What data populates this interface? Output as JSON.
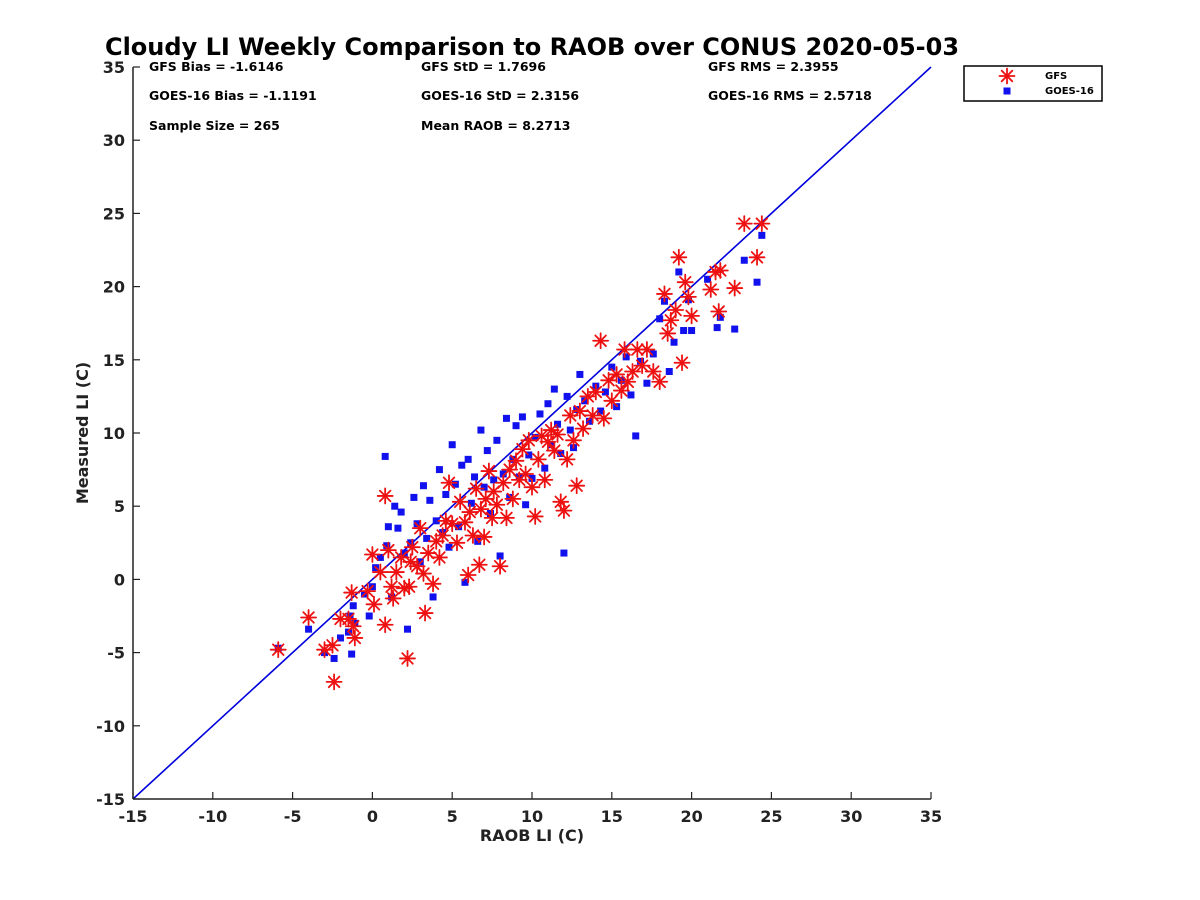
{
  "chart_data": {
    "type": "scatter",
    "title": "Cloudy LI Weekly Comparison to RAOB over CONUS 2020-05-03",
    "xlabel": "RAOB LI (C)",
    "ylabel": "Measured LI (C)",
    "xlim": [
      -15,
      35
    ],
    "ylim": [
      -15,
      35
    ],
    "x_ticks": [
      "-15",
      "-10",
      "-5",
      "0",
      "5",
      "10",
      "15",
      "20",
      "25",
      "30",
      "35"
    ],
    "y_ticks": [
      "35",
      "30",
      "25",
      "20",
      "15",
      "10",
      "5",
      "0",
      "-5",
      "-10",
      "-15"
    ],
    "grid": false,
    "legend_position": "top-right outside",
    "reference_line": {
      "name": "1:1 line",
      "x": [
        -15,
        35
      ],
      "y": [
        -15,
        35
      ],
      "color": "#0000dd"
    },
    "stats": [
      {
        "label": "GFS Bias = -1.6146"
      },
      {
        "label": "GFS StD = 1.7696"
      },
      {
        "label": "GFS RMS = 2.3955"
      },
      {
        "label": "GOES-16 Bias = -1.1191"
      },
      {
        "label": "GOES-16 StD = 2.3156"
      },
      {
        "label": "GOES-16 RMS = 2.5718"
      },
      {
        "label": "Sample Size = 265"
      },
      {
        "label": "Mean RAOB = 8.2713"
      }
    ],
    "series": [
      {
        "name": "GFS",
        "marker": "asterisk",
        "color": "#ee1111",
        "points": [
          [
            -5.9,
            -4.8
          ],
          [
            -4.0,
            -2.6
          ],
          [
            -3.0,
            -4.8
          ],
          [
            -2.5,
            -4.5
          ],
          [
            -2.4,
            -7.0
          ],
          [
            -2.0,
            -2.7
          ],
          [
            -1.5,
            -2.7
          ],
          [
            -1.3,
            -0.9
          ],
          [
            -1.2,
            -3.2
          ],
          [
            -1.1,
            -4.0
          ],
          [
            -0.3,
            -0.8
          ],
          [
            0.0,
            1.7
          ],
          [
            0.1,
            -1.7
          ],
          [
            0.5,
            0.5
          ],
          [
            0.8,
            5.7
          ],
          [
            0.8,
            -3.1
          ],
          [
            1.0,
            2.0
          ],
          [
            1.2,
            -0.5
          ],
          [
            1.3,
            -1.3
          ],
          [
            1.5,
            0.5
          ],
          [
            1.8,
            1.5
          ],
          [
            2.0,
            -0.6
          ],
          [
            2.2,
            -5.4
          ],
          [
            2.3,
            -0.5
          ],
          [
            2.4,
            1.2
          ],
          [
            2.5,
            2.2
          ],
          [
            2.8,
            0.9
          ],
          [
            3.0,
            3.5
          ],
          [
            3.2,
            0.4
          ],
          [
            3.3,
            -2.3
          ],
          [
            3.5,
            1.8
          ],
          [
            3.8,
            -0.3
          ],
          [
            4.0,
            2.6
          ],
          [
            4.2,
            1.5
          ],
          [
            4.4,
            3.0
          ],
          [
            4.6,
            4.0
          ],
          [
            4.8,
            6.6
          ],
          [
            5.0,
            3.8
          ],
          [
            5.3,
            2.5
          ],
          [
            5.5,
            5.3
          ],
          [
            5.8,
            3.9
          ],
          [
            6.0,
            0.3
          ],
          [
            6.1,
            4.6
          ],
          [
            6.3,
            3.0
          ],
          [
            6.5,
            6.2
          ],
          [
            6.7,
            1.0
          ],
          [
            6.8,
            4.8
          ],
          [
            7.0,
            2.9
          ],
          [
            7.1,
            5.5
          ],
          [
            7.3,
            7.4
          ],
          [
            7.5,
            4.2
          ],
          [
            7.6,
            6.0
          ],
          [
            7.8,
            5.1
          ],
          [
            8.0,
            0.9
          ],
          [
            8.2,
            6.6
          ],
          [
            8.4,
            4.2
          ],
          [
            8.6,
            7.5
          ],
          [
            8.8,
            5.5
          ],
          [
            9.0,
            8.1
          ],
          [
            9.2,
            6.8
          ],
          [
            9.4,
            8.9
          ],
          [
            9.6,
            7.2
          ],
          [
            9.8,
            9.5
          ],
          [
            10.0,
            6.3
          ],
          [
            10.2,
            4.3
          ],
          [
            10.4,
            8.2
          ],
          [
            10.6,
            9.8
          ],
          [
            10.8,
            6.8
          ],
          [
            11.0,
            9.4
          ],
          [
            11.2,
            10.2
          ],
          [
            11.4,
            8.8
          ],
          [
            11.6,
            9.9
          ],
          [
            11.8,
            5.3
          ],
          [
            12.0,
            4.7
          ],
          [
            12.2,
            8.2
          ],
          [
            12.4,
            11.2
          ],
          [
            12.6,
            9.5
          ],
          [
            12.8,
            6.4
          ],
          [
            13.0,
            11.5
          ],
          [
            13.2,
            10.3
          ],
          [
            13.5,
            12.5
          ],
          [
            13.8,
            11.2
          ],
          [
            14.0,
            12.8
          ],
          [
            14.3,
            16.3
          ],
          [
            14.5,
            11.0
          ],
          [
            14.8,
            13.6
          ],
          [
            15.0,
            12.2
          ],
          [
            15.3,
            14.0
          ],
          [
            15.6,
            12.9
          ],
          [
            15.8,
            15.7
          ],
          [
            16.0,
            13.5
          ],
          [
            16.3,
            14.2
          ],
          [
            16.6,
            15.7
          ],
          [
            16.9,
            14.6
          ],
          [
            17.2,
            15.7
          ],
          [
            17.6,
            14.2
          ],
          [
            18.0,
            13.5
          ],
          [
            18.3,
            19.5
          ],
          [
            18.5,
            16.8
          ],
          [
            18.7,
            17.7
          ],
          [
            19.0,
            18.4
          ],
          [
            19.2,
            22.0
          ],
          [
            19.4,
            14.8
          ],
          [
            19.6,
            20.3
          ],
          [
            19.8,
            19.3
          ],
          [
            20.0,
            18.0
          ],
          [
            21.2,
            19.8
          ],
          [
            21.5,
            21.0
          ],
          [
            21.7,
            18.3
          ],
          [
            21.8,
            21.1
          ],
          [
            22.7,
            19.9
          ],
          [
            23.3,
            24.3
          ],
          [
            24.1,
            22.0
          ],
          [
            24.4,
            24.3
          ]
        ]
      },
      {
        "name": "GOES-16",
        "marker": "square",
        "color": "#1111ee",
        "points": [
          [
            -5.9,
            -4.7
          ],
          [
            -4.0,
            -3.4
          ],
          [
            -3.0,
            -5.0
          ],
          [
            -2.4,
            -5.4
          ],
          [
            -2.0,
            -4.0
          ],
          [
            -1.5,
            -3.6
          ],
          [
            -1.4,
            -2.5
          ],
          [
            -1.3,
            -5.1
          ],
          [
            -1.2,
            -1.8
          ],
          [
            -1.1,
            -3.0
          ],
          [
            -0.5,
            -1.0
          ],
          [
            -0.2,
            -2.5
          ],
          [
            0.0,
            -0.5
          ],
          [
            0.2,
            0.8
          ],
          [
            0.5,
            1.5
          ],
          [
            0.8,
            8.4
          ],
          [
            0.9,
            2.3
          ],
          [
            1.0,
            3.6
          ],
          [
            1.2,
            -1.2
          ],
          [
            1.4,
            5.0
          ],
          [
            1.6,
            3.5
          ],
          [
            1.8,
            4.6
          ],
          [
            2.0,
            1.8
          ],
          [
            2.2,
            -3.4
          ],
          [
            2.4,
            2.5
          ],
          [
            2.6,
            5.6
          ],
          [
            2.8,
            3.8
          ],
          [
            3.0,
            1.2
          ],
          [
            3.2,
            6.4
          ],
          [
            3.4,
            2.8
          ],
          [
            3.6,
            5.4
          ],
          [
            3.8,
            -1.2
          ],
          [
            4.0,
            4.0
          ],
          [
            4.2,
            7.5
          ],
          [
            4.4,
            3.2
          ],
          [
            4.6,
            5.8
          ],
          [
            4.8,
            2.2
          ],
          [
            5.0,
            9.2
          ],
          [
            5.2,
            6.5
          ],
          [
            5.4,
            3.6
          ],
          [
            5.6,
            7.8
          ],
          [
            5.8,
            -0.2
          ],
          [
            6.0,
            8.2
          ],
          [
            6.2,
            5.2
          ],
          [
            6.4,
            7.0
          ],
          [
            6.6,
            2.6
          ],
          [
            6.8,
            10.2
          ],
          [
            7.0,
            6.3
          ],
          [
            7.2,
            8.8
          ],
          [
            7.4,
            4.5
          ],
          [
            7.6,
            6.8
          ],
          [
            7.8,
            9.5
          ],
          [
            8.0,
            1.6
          ],
          [
            8.2,
            7.2
          ],
          [
            8.4,
            11.0
          ],
          [
            8.6,
            5.6
          ],
          [
            8.8,
            8.2
          ],
          [
            9.0,
            10.5
          ],
          [
            9.2,
            7.0
          ],
          [
            9.4,
            11.1
          ],
          [
            9.6,
            5.1
          ],
          [
            9.8,
            8.5
          ],
          [
            10.0,
            6.9
          ],
          [
            10.2,
            9.7
          ],
          [
            10.5,
            11.3
          ],
          [
            10.8,
            7.6
          ],
          [
            11.0,
            12.0
          ],
          [
            11.2,
            9.2
          ],
          [
            11.4,
            13.0
          ],
          [
            11.6,
            10.6
          ],
          [
            11.8,
            8.6
          ],
          [
            12.0,
            1.8
          ],
          [
            12.2,
            12.5
          ],
          [
            12.4,
            10.2
          ],
          [
            12.6,
            9.0
          ],
          [
            12.8,
            11.6
          ],
          [
            13.0,
            14.0
          ],
          [
            13.3,
            12.2
          ],
          [
            13.6,
            10.8
          ],
          [
            14.0,
            13.2
          ],
          [
            14.3,
            11.5
          ],
          [
            14.6,
            12.8
          ],
          [
            15.0,
            14.5
          ],
          [
            15.3,
            11.8
          ],
          [
            15.6,
            13.6
          ],
          [
            15.9,
            15.2
          ],
          [
            16.2,
            12.6
          ],
          [
            16.5,
            9.8
          ],
          [
            16.8,
            14.9
          ],
          [
            17.2,
            13.4
          ],
          [
            17.6,
            15.4
          ],
          [
            18.0,
            17.8
          ],
          [
            18.3,
            19.0
          ],
          [
            18.6,
            14.2
          ],
          [
            18.9,
            16.2
          ],
          [
            19.2,
            21.0
          ],
          [
            19.5,
            17.0
          ],
          [
            19.8,
            19.1
          ],
          [
            20.0,
            17.0
          ],
          [
            21.0,
            20.5
          ],
          [
            21.6,
            17.2
          ],
          [
            21.8,
            17.9
          ],
          [
            22.7,
            17.1
          ],
          [
            23.3,
            21.8
          ],
          [
            24.1,
            20.3
          ],
          [
            24.4,
            23.5
          ]
        ]
      }
    ]
  }
}
